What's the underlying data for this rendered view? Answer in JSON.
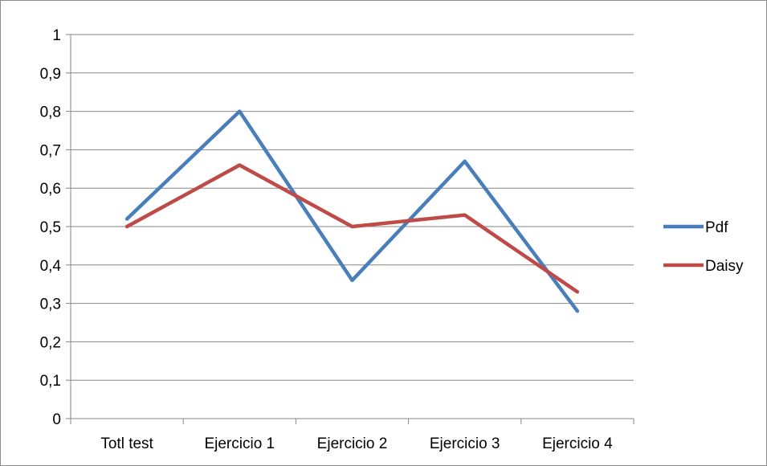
{
  "chart_data": {
    "type": "line",
    "categories": [
      "Totl test",
      "Ejercicio 1",
      "Ejercicio 2",
      "Ejercicio 3",
      "Ejercicio 4"
    ],
    "series": [
      {
        "name": "Pdf",
        "color": "#4a7ebb",
        "values": [
          0.52,
          0.8,
          0.36,
          0.67,
          0.28
        ]
      },
      {
        "name": "Daisy",
        "color": "#be4b48",
        "values": [
          0.5,
          0.66,
          0.5,
          0.53,
          0.33
        ]
      }
    ],
    "ylim": [
      0,
      1
    ],
    "yticks": [
      "0",
      "0,1",
      "0,2",
      "0,3",
      "0,4",
      "0,5",
      "0,6",
      "0,7",
      "0,8",
      "0,9",
      "1"
    ],
    "grid": true,
    "legend": "right"
  }
}
